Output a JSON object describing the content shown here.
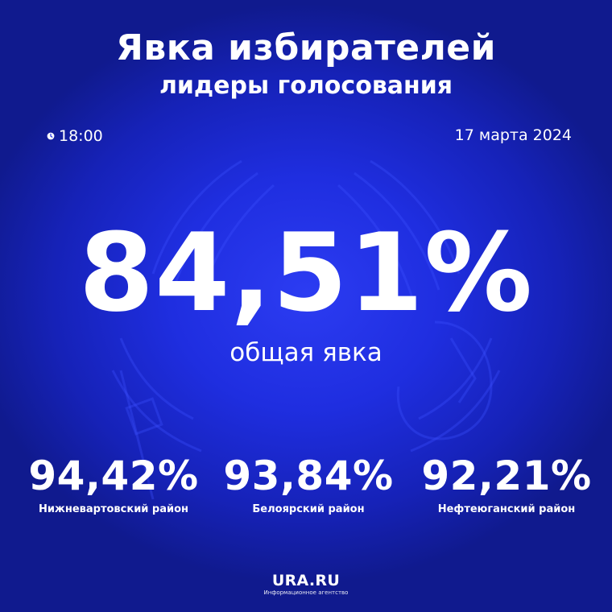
{
  "header": {
    "title": "Явка избирателей",
    "subtitle": "лидеры голосования"
  },
  "meta": {
    "time": "18:00",
    "date": "17 марта 2024"
  },
  "overall": {
    "value": "84,51%",
    "label": "общая явка"
  },
  "leaders": [
    {
      "value": "94,42%",
      "name": "Нижневартовский район"
    },
    {
      "value": "93,84%",
      "name": "Белоярский район"
    },
    {
      "value": "92,21%",
      "name": "Нефтеюганский район"
    }
  ],
  "logo": {
    "brand": "URA.RU",
    "tagline": "Информационное агентство"
  },
  "colors": {
    "background": "#1f2ee0",
    "background_edge": "#101a8e",
    "text": "#ffffff"
  },
  "icons": {
    "time": "clock-icon",
    "background": "double-headed-eagle-emblem"
  }
}
